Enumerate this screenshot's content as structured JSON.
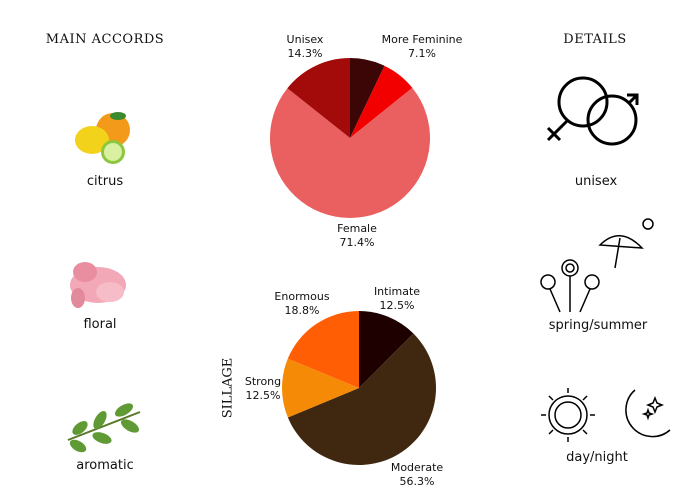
{
  "left": {
    "heading": "MAIN ACCORDS",
    "accords": [
      {
        "label": "citrus",
        "icon": "citrus-fruits-icon"
      },
      {
        "label": "floral",
        "icon": "carnation-flower-icon"
      },
      {
        "label": "aromatic",
        "icon": "herb-sprig-icon"
      }
    ]
  },
  "right": {
    "heading": "DETAILS",
    "details": [
      {
        "label": "unisex",
        "icon": "gender-symbols-icon"
      },
      {
        "label": "spring/summer",
        "icon": "flowers-umbrella-sun-icon"
      },
      {
        "label": "day/night",
        "icon": "sun-moon-icon"
      }
    ]
  },
  "chart_data": [
    {
      "type": "pie",
      "title": "",
      "slices": [
        {
          "name": "",
          "value": 7.1,
          "color": "#3d0606"
        },
        {
          "name": "More Feminine",
          "value": 7.1,
          "label": "7.1%",
          "color": "#f20000"
        },
        {
          "name": "Female",
          "value": 71.4,
          "label": "71.4%",
          "color": "#ea5f5f"
        },
        {
          "name": "Unisex",
          "value": 14.3,
          "label": "14.3%",
          "color": "#a30b0b"
        }
      ]
    },
    {
      "type": "pie",
      "title": "SILLAGE",
      "slices": [
        {
          "name": "Intimate",
          "value": 12.5,
          "label": "12.5%",
          "color": "#1e0000"
        },
        {
          "name": "Moderate",
          "value": 56.3,
          "label": "56.3%",
          "color": "#3f2710"
        },
        {
          "name": "Strong",
          "value": 12.5,
          "label": "12.5%",
          "color": "#f58a07"
        },
        {
          "name": "Enormous",
          "value": 18.8,
          "label": "18.8%",
          "color": "#ff5e05"
        }
      ]
    }
  ]
}
